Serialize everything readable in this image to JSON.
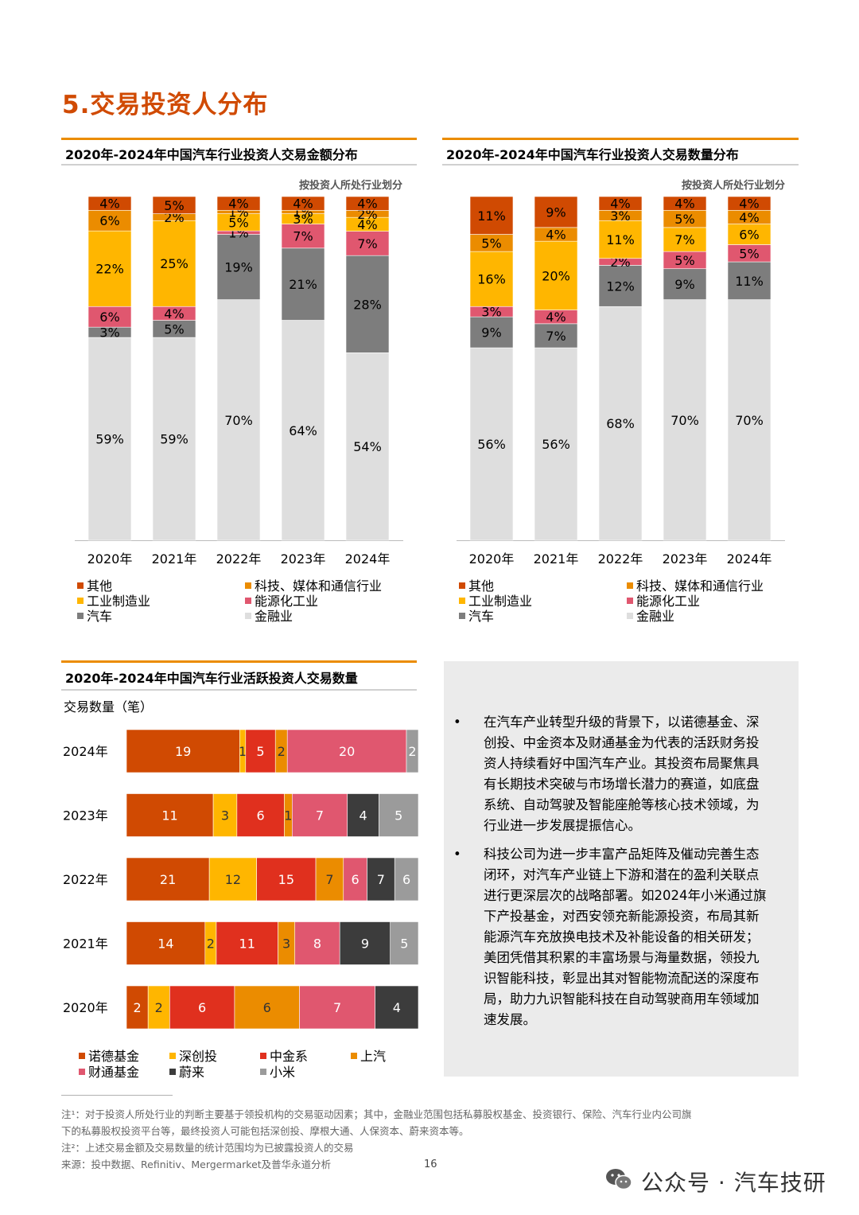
{
  "page": {
    "title": "5.交易投资人分布",
    "page_number": "16",
    "watermark": "公众号 · 汽车技研"
  },
  "text_box": {
    "bullets": [
      "在汽车产业转型升级的背景下，以诺德基金、深创投、中金资本及财通基金为代表的活跃财务投资人持续看好中国汽车产业。其投资布局聚焦具有长期技术突破与市场增长潜力的赛道，如底盘系统、自动驾驶及智能座舱等核心技术领域，为行业进一步发展提振信心。",
      "科技公司为进一步丰富产品矩阵及催动完善生态闭环，对汽车产业链上下游和潜在的盈利关联点进行更深层次的战略部署。如2024年小米通过旗下产投基金，对西安领充新能源投资，布局其新能源汽车充放换电技术及补能设备的相关研发；美团凭借其积累的丰富场景与海量数据，领投九识智能科技，彰显出其对智能物流配送的深度布局，助力九识智能科技在自动驾驶商用车领域加速发展。"
    ],
    "bullet_symbol": "•"
  },
  "footnotes": [
    "注¹：对于投资人所处行业的判断主要基于领投机构的交易驱动因素；其中，金融业范围包括私募股权基金、投资银行、保险、汽车行业内公司旗",
    "下的私募股权投资平台等，最终投资人可能包括深创投、摩根大通、人保资本、蔚来资本等。",
    "注²：上述交易金额及交易数量的统计范围均为已披露投资人的交易",
    "来源：投中数据、Refinitiv、Mergermarket及普华永道分析"
  ],
  "chart_data": [
    {
      "type": "bar",
      "stacked": true,
      "title": "2020年-2024年中国汽车行业投资人交易金额分布",
      "subtitle": "按投资人所处行业划分",
      "categories": [
        "2020年",
        "2021年",
        "2022年",
        "2023年",
        "2024年"
      ],
      "series": [
        {
          "name": "金融业",
          "color": "#dedede",
          "values": [
            59,
            59,
            70,
            64,
            54
          ],
          "labels": [
            "59%",
            "59%",
            "70%",
            "64%",
            "54%"
          ]
        },
        {
          "name": "汽车",
          "color": "#7d7d7d",
          "values": [
            3,
            5,
            19,
            21,
            28
          ],
          "labels": [
            "3%",
            "5%",
            "19%",
            "21%",
            "28%"
          ]
        },
        {
          "name": "能源化工业",
          "color": "#e0576f",
          "values": [
            6,
            4,
            1,
            7,
            7
          ],
          "labels": [
            "6%",
            "4%",
            "1%",
            "7%",
            "7%"
          ]
        },
        {
          "name": "工业制造业",
          "color": "#ffb600",
          "values": [
            22,
            25,
            5,
            3,
            4
          ],
          "labels": [
            "22%",
            "25%",
            "5%",
            "3%",
            "4%"
          ]
        },
        {
          "name": "科技、媒体和通信行业",
          "color": "#eb8c00",
          "values": [
            6,
            2,
            1,
            1,
            2
          ],
          "labels": [
            "6%",
            "2%",
            "1%",
            "1%",
            "2%"
          ]
        },
        {
          "name": "其他",
          "color": "#d04a02",
          "values": [
            4,
            5,
            4,
            4,
            4
          ],
          "labels": [
            "4%",
            "5%",
            "4%",
            "4%",
            "4%"
          ]
        }
      ],
      "legend": [
        "其他",
        "科技、媒体和通信行业",
        "工业制造业",
        "能源化工业",
        "汽车",
        "金融业"
      ]
    },
    {
      "type": "bar",
      "stacked": true,
      "title": "2020年-2024年中国汽车行业投资人交易数量分布",
      "subtitle": "按投资人所处行业划分",
      "categories": [
        "2020年",
        "2021年",
        "2022年",
        "2023年",
        "2024年"
      ],
      "series": [
        {
          "name": "金融业",
          "color": "#dedede",
          "values": [
            56,
            56,
            68,
            70,
            70
          ],
          "labels": [
            "56%",
            "56%",
            "68%",
            "70%",
            "70%"
          ]
        },
        {
          "name": "汽车",
          "color": "#7d7d7d",
          "values": [
            9,
            7,
            12,
            9,
            11
          ],
          "labels": [
            "9%",
            "7%",
            "12%",
            "9%",
            "11%"
          ]
        },
        {
          "name": "能源化工业",
          "color": "#e0576f",
          "values": [
            3,
            4,
            2,
            5,
            5
          ],
          "labels": [
            "3%",
            "4%",
            "2%",
            "5%",
            "5%"
          ]
        },
        {
          "name": "工业制造业",
          "color": "#ffb600",
          "values": [
            16,
            20,
            11,
            7,
            6
          ],
          "labels": [
            "16%",
            "20%",
            "11%",
            "7%",
            "6%"
          ]
        },
        {
          "name": "科技、媒体和通信行业",
          "color": "#eb8c00",
          "values": [
            5,
            4,
            3,
            5,
            4
          ],
          "labels": [
            "5%",
            "4%",
            "3%",
            "5%",
            "4%"
          ]
        },
        {
          "name": "其他",
          "color": "#d04a02",
          "values": [
            11,
            9,
            4,
            4,
            4
          ],
          "labels": [
            "11%",
            "9%",
            "4%",
            "4%",
            "4%"
          ]
        }
      ],
      "legend": [
        "其他",
        "科技、媒体和通信行业",
        "工业制造业",
        "能源化工业",
        "汽车",
        "金融业"
      ]
    },
    {
      "type": "bar",
      "orientation": "horizontal",
      "stacked": true,
      "title": "2020年-2024年中国汽车行业活跃投资人交易数量",
      "ylabel": "交易数量（笔）",
      "categories": [
        "2024年",
        "2023年",
        "2022年",
        "2021年",
        "2020年"
      ],
      "series": [
        {
          "name": "诺德基金",
          "color": "#d04a02",
          "values": [
            19,
            11,
            21,
            14,
            2
          ]
        },
        {
          "name": "深创投",
          "color": "#ffb600",
          "values": [
            1,
            3,
            12,
            2,
            2
          ]
        },
        {
          "name": "中金系",
          "color": "#e0301e",
          "values": [
            5,
            6,
            15,
            11,
            6
          ]
        },
        {
          "name": "上汽",
          "color": "#eb8c00",
          "values": [
            2,
            1,
            7,
            3,
            6
          ]
        },
        {
          "name": "财通基金",
          "color": "#e0576f",
          "values": [
            20,
            7,
            6,
            8,
            7
          ]
        },
        {
          "name": "蔚来",
          "color": "#3c3c3c",
          "values": [
            0,
            4,
            7,
            9,
            4
          ]
        },
        {
          "name": "小米",
          "color": "#9b9b9b",
          "values": [
            2,
            5,
            6,
            5,
            0
          ]
        }
      ],
      "legend": [
        "诺德基金",
        "深创投",
        "中金系",
        "上汽",
        "财通基金",
        "蔚来",
        "小米"
      ]
    }
  ]
}
